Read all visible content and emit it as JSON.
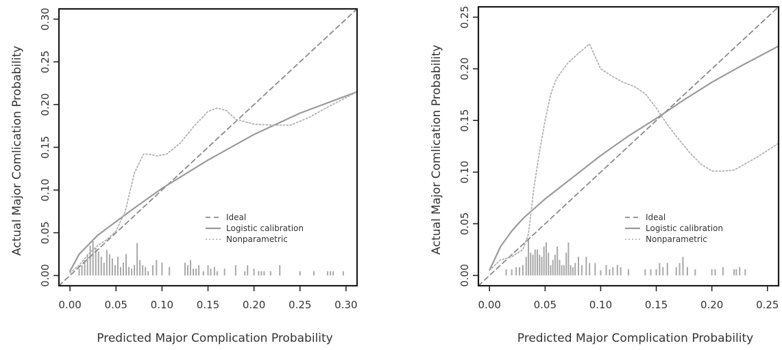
{
  "chart_data": [
    {
      "type": "line",
      "xlabel": "Predicted Major Complication Probability",
      "ylabel": "Actual Major Comlication Probability",
      "xlim": [
        -0.012,
        0.312
      ],
      "ylim": [
        -0.012,
        0.312
      ],
      "x_ticks": [
        0.0,
        0.05,
        0.1,
        0.15,
        0.2,
        0.25,
        0.3
      ],
      "x_tick_labels": [
        "0.00",
        "0.05",
        "0.10",
        "0.15",
        "0.20",
        "0.25",
        "0.30"
      ],
      "y_ticks": [
        0.0,
        0.05,
        0.1,
        0.15,
        0.2,
        0.25,
        0.3
      ],
      "y_tick_labels": [
        "0.00",
        "0.05",
        "0.10",
        "0.15",
        "0.20",
        "0.25",
        "0.30"
      ],
      "grid": false,
      "legend_position": "bottom-right",
      "series": [
        {
          "name": "Ideal",
          "style": "dashed",
          "color": "#8a8a8a",
          "points": [
            [
              -0.012,
              -0.012
            ],
            [
              0.312,
              0.312
            ]
          ]
        },
        {
          "name": "Logistic calibration",
          "style": "solid",
          "color": "#9a9a9a",
          "points": [
            [
              0.0,
              0.005
            ],
            [
              0.01,
              0.025
            ],
            [
              0.02,
              0.036
            ],
            [
              0.03,
              0.047
            ],
            [
              0.05,
              0.063
            ],
            [
              0.07,
              0.079
            ],
            [
              0.1,
              0.102
            ],
            [
              0.15,
              0.135
            ],
            [
              0.2,
              0.165
            ],
            [
              0.25,
              0.19
            ],
            [
              0.312,
              0.215
            ]
          ]
        },
        {
          "name": "Nonparametric",
          "style": "dotted",
          "color": "#b0b0b0",
          "points": [
            [
              0.0,
              0.003
            ],
            [
              0.01,
              0.012
            ],
            [
              0.02,
              0.025
            ],
            [
              0.03,
              0.035
            ],
            [
              0.04,
              0.042
            ],
            [
              0.05,
              0.052
            ],
            [
              0.06,
              0.075
            ],
            [
              0.07,
              0.12
            ],
            [
              0.08,
              0.142
            ],
            [
              0.085,
              0.142
            ],
            [
              0.095,
              0.14
            ],
            [
              0.105,
              0.142
            ],
            [
              0.12,
              0.155
            ],
            [
              0.135,
              0.175
            ],
            [
              0.15,
              0.192
            ],
            [
              0.16,
              0.196
            ],
            [
              0.17,
              0.193
            ],
            [
              0.18,
              0.183
            ],
            [
              0.2,
              0.177
            ],
            [
              0.22,
              0.176
            ],
            [
              0.24,
              0.176
            ],
            [
              0.26,
              0.185
            ],
            [
              0.28,
              0.197
            ],
            [
              0.312,
              0.215
            ]
          ]
        }
      ],
      "histogram": {
        "x": [
          0.01,
          0.013,
          0.016,
          0.019,
          0.022,
          0.025,
          0.028,
          0.031,
          0.034,
          0.037,
          0.04,
          0.043,
          0.046,
          0.049,
          0.052,
          0.055,
          0.058,
          0.061,
          0.064,
          0.067,
          0.07,
          0.073,
          0.076,
          0.079,
          0.082,
          0.085,
          0.09,
          0.094,
          0.1,
          0.108,
          0.125,
          0.128,
          0.131,
          0.134,
          0.137,
          0.14,
          0.145,
          0.15,
          0.153,
          0.157,
          0.16,
          0.168,
          0.18,
          0.19,
          0.193,
          0.2,
          0.205,
          0.208,
          0.211,
          0.218,
          0.228,
          0.25,
          0.265,
          0.28,
          0.283,
          0.286,
          0.297
        ],
        "heights": [
          0.008,
          0.012,
          0.018,
          0.025,
          0.035,
          0.04,
          0.032,
          0.028,
          0.022,
          0.015,
          0.03,
          0.025,
          0.02,
          0.012,
          0.022,
          0.01,
          0.015,
          0.025,
          0.01,
          0.008,
          0.012,
          0.038,
          0.018,
          0.012,
          0.01,
          0.005,
          0.012,
          0.018,
          0.015,
          0.01,
          0.015,
          0.012,
          0.018,
          0.008,
          0.008,
          0.012,
          0.005,
          0.012,
          0.008,
          0.01,
          0.005,
          0.008,
          0.012,
          0.005,
          0.012,
          0.008,
          0.005,
          0.005,
          0.005,
          0.005,
          0.012,
          0.005,
          0.005,
          0.005,
          0.005,
          0.005,
          0.005
        ]
      }
    },
    {
      "type": "line",
      "xlabel": "Predicted Major Complication Probability",
      "ylabel": "Actual Major Comlication Probability",
      "xlim": [
        -0.01,
        0.26
      ],
      "ylim": [
        -0.01,
        0.26
      ],
      "x_ticks": [
        0.0,
        0.05,
        0.1,
        0.15,
        0.2,
        0.25
      ],
      "x_tick_labels": [
        "0.00",
        "0.05",
        "0.10",
        "0.15",
        "0.20",
        "0.25"
      ],
      "y_ticks": [
        0.0,
        0.05,
        0.1,
        0.15,
        0.2,
        0.25
      ],
      "y_tick_labels": [
        "0.00",
        "0.05",
        "0.10",
        "0.15",
        "0.20",
        "0.25"
      ],
      "grid": false,
      "legend_position": "bottom-right",
      "series": [
        {
          "name": "Ideal",
          "style": "dashed",
          "color": "#8a8a8a",
          "points": [
            [
              -0.01,
              -0.01
            ],
            [
              0.26,
              0.26
            ]
          ]
        },
        {
          "name": "Logistic calibration",
          "style": "solid",
          "color": "#9a9a9a",
          "points": [
            [
              0.0,
              0.005
            ],
            [
              0.01,
              0.028
            ],
            [
              0.02,
              0.043
            ],
            [
              0.03,
              0.055
            ],
            [
              0.05,
              0.074
            ],
            [
              0.075,
              0.095
            ],
            [
              0.1,
              0.116
            ],
            [
              0.125,
              0.135
            ],
            [
              0.15,
              0.152
            ],
            [
              0.175,
              0.17
            ],
            [
              0.2,
              0.187
            ],
            [
              0.225,
              0.202
            ],
            [
              0.26,
              0.222
            ]
          ]
        },
        {
          "name": "Nonparametric",
          "style": "dotted",
          "color": "#b0b0b0",
          "points": [
            [
              0.0,
              0.005
            ],
            [
              0.01,
              0.015
            ],
            [
              0.02,
              0.018
            ],
            [
              0.03,
              0.025
            ],
            [
              0.035,
              0.04
            ],
            [
              0.04,
              0.085
            ],
            [
              0.045,
              0.12
            ],
            [
              0.05,
              0.15
            ],
            [
              0.055,
              0.175
            ],
            [
              0.06,
              0.19
            ],
            [
              0.07,
              0.205
            ],
            [
              0.08,
              0.215
            ],
            [
              0.09,
              0.224
            ],
            [
              0.095,
              0.212
            ],
            [
              0.1,
              0.2
            ],
            [
              0.11,
              0.193
            ],
            [
              0.12,
              0.187
            ],
            [
              0.13,
              0.183
            ],
            [
              0.14,
              0.176
            ],
            [
              0.15,
              0.162
            ],
            [
              0.16,
              0.146
            ],
            [
              0.17,
              0.132
            ],
            [
              0.18,
              0.119
            ],
            [
              0.19,
              0.108
            ],
            [
              0.2,
              0.101
            ],
            [
              0.21,
              0.101
            ],
            [
              0.22,
              0.102
            ],
            [
              0.24,
              0.114
            ],
            [
              0.26,
              0.128
            ]
          ]
        }
      ],
      "histogram": {
        "x": [
          0.015,
          0.02,
          0.024,
          0.027,
          0.03,
          0.033,
          0.035,
          0.037,
          0.039,
          0.041,
          0.043,
          0.045,
          0.047,
          0.049,
          0.051,
          0.053,
          0.055,
          0.057,
          0.059,
          0.061,
          0.063,
          0.065,
          0.067,
          0.069,
          0.071,
          0.073,
          0.075,
          0.077,
          0.08,
          0.083,
          0.087,
          0.09,
          0.095,
          0.1,
          0.105,
          0.108,
          0.111,
          0.115,
          0.118,
          0.125,
          0.14,
          0.145,
          0.15,
          0.153,
          0.156,
          0.16,
          0.168,
          0.171,
          0.174,
          0.178,
          0.185,
          0.2,
          0.203,
          0.21,
          0.22,
          0.222,
          0.225,
          0.23
        ],
        "heights": [
          0.006,
          0.006,
          0.008,
          0.008,
          0.01,
          0.018,
          0.035,
          0.022,
          0.02,
          0.025,
          0.025,
          0.02,
          0.018,
          0.028,
          0.032,
          0.022,
          0.01,
          0.015,
          0.02,
          0.028,
          0.015,
          0.01,
          0.01,
          0.022,
          0.032,
          0.01,
          0.008,
          0.012,
          0.018,
          0.01,
          0.018,
          0.012,
          0.012,
          0.005,
          0.01,
          0.006,
          0.008,
          0.01,
          0.008,
          0.006,
          0.006,
          0.006,
          0.006,
          0.012,
          0.008,
          0.012,
          0.008,
          0.012,
          0.018,
          0.008,
          0.006,
          0.006,
          0.006,
          0.008,
          0.006,
          0.006,
          0.008,
          0.006
        ]
      }
    }
  ]
}
